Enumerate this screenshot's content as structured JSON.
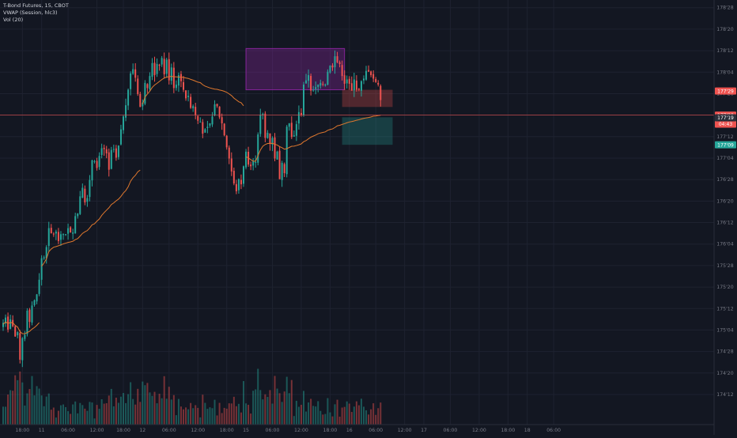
{
  "legend": {
    "symbol": "T-Bond Futures, 15, CBOT",
    "vwap": "VWAP (Session, hlc3)",
    "volume": "Vol (20)"
  },
  "colors": {
    "background": "#131722",
    "grid": "#1e2230",
    "up": "#26a69a",
    "down": "#ef5350",
    "vwap": "#e0782e",
    "axis_text": "#787b86",
    "range_box": "#9c27b0",
    "stop_zone": "#ef5350",
    "target_zone": "#26a69a"
  },
  "chart_data": {
    "type": "candlestick",
    "y_axis": {
      "unit": "price (points'32nds)",
      "ylim": [
        174.2,
        178.9
      ],
      "tick_labels": [
        "178'28",
        "178'20",
        "178'12",
        "178'04",
        "177'28",
        "177'20",
        "177'12",
        "177'04",
        "176'28",
        "176'20",
        "176'12",
        "176'04",
        "175'28",
        "175'20",
        "175'12",
        "175'04",
        "174'28",
        "174'20",
        "174'12"
      ],
      "tick_values": [
        178.875,
        178.625,
        178.375,
        178.125,
        177.875,
        177.625,
        177.375,
        177.125,
        176.875,
        176.625,
        176.375,
        176.125,
        175.875,
        175.625,
        175.375,
        175.125,
        174.875,
        174.625,
        174.375
      ]
    },
    "x_axis": {
      "tick_labels": [
        "18:00",
        "11",
        "06:00",
        "12:00",
        "18:00",
        "12",
        "06:00",
        "12:00",
        "18:00",
        "15",
        "06:00",
        "12:00",
        "18:00",
        "16",
        "06:00",
        "12:00",
        "17",
        "06:00",
        "12:00",
        "18:00",
        "18",
        "06:00"
      ],
      "tick_index": [
        8,
        16,
        27,
        39,
        50,
        58,
        69,
        81,
        93,
        101,
        112,
        124,
        136,
        144,
        155,
        167,
        175,
        186,
        198,
        210,
        218,
        229
      ]
    },
    "series": {
      "ohlc_close": [
        175.21,
        175.27,
        175.13,
        175.25,
        175.17,
        175.05,
        175.1,
        174.78,
        175.03,
        175.07,
        175.35,
        175.22,
        175.41,
        175.47,
        175.54,
        175.71,
        175.96,
        175.97,
        176.09,
        176.31,
        176.25,
        176.24,
        176.27,
        176.16,
        176.24,
        176.24,
        176.24,
        176.31,
        176.26,
        176.26,
        176.45,
        176.48,
        176.68,
        176.78,
        176.61,
        176.66,
        176.87,
        177.1,
        177.09,
        177.01,
        177.15,
        177.24,
        177.23,
        177.18,
        176.99,
        177.22,
        177.23,
        177.13,
        177.27,
        177.46,
        177.61,
        177.74,
        177.92,
        178.11,
        178.16,
        178.06,
        177.87,
        177.72,
        177.77,
        178.0,
        177.94,
        178.08,
        178.23,
        178.09,
        178.22,
        178.2,
        178.29,
        178.1,
        178.27,
        178.03,
        178.18,
        177.94,
        177.98,
        178.09,
        178.02,
        177.92,
        177.82,
        177.85,
        177.71,
        177.73,
        177.63,
        177.56,
        177.55,
        177.41,
        177.46,
        177.49,
        177.53,
        177.61,
        177.75,
        177.73,
        177.6,
        177.53,
        177.39,
        177.25,
        177.12,
        176.97,
        176.83,
        176.74,
        176.88,
        176.82,
        177.03,
        177.2,
        177.05,
        177.03,
        177.09,
        177.08,
        177.4,
        177.63,
        177.64,
        177.36,
        177.42,
        177.29,
        177.36,
        177.12,
        177.2,
        176.88,
        177.07,
        176.95,
        177.49,
        177.53,
        177.37,
        177.39,
        177.52,
        177.66,
        177.63,
        177.98,
        178.03,
        178.09,
        177.91,
        177.92,
        177.95,
        177.98,
        178.0,
        177.98,
        177.98,
        178.13,
        178.2,
        178.18,
        178.31,
        178.24,
        178.22,
        178.08,
        177.99,
        178.04,
        177.99,
        177.91,
        178.04,
        177.92,
        177.92,
        178.02,
        178.05,
        178.14,
        178.13,
        178.09,
        178.05,
        178.01,
        177.98,
        177.8
      ],
      "vwap": "session volume-weighted average price line (orange)",
      "volume_bars": "per-candle volume, colored by candle direction"
    },
    "annotations": {
      "price_labels": [
        {
          "text": "177'29",
          "price": 177.906,
          "color": "#ef5350"
        },
        {
          "text": "177'20",
          "price": 177.625,
          "color": "#ef5350"
        },
        {
          "text": "04:43",
          "price": 177.52,
          "color": "#ef5350"
        },
        {
          "text": "177'19",
          "price": 177.594,
          "color": "#2a2e39"
        },
        {
          "text": "177'09",
          "price": 177.28,
          "color": "#26a69a"
        }
      ],
      "current_price": 177.625,
      "range_box": {
        "from_index": 101,
        "to_index": 142,
        "price_low": 177.92,
        "price_high": 178.4
      },
      "stop_zone": {
        "from_index": 141,
        "to_index": 162,
        "price_low": 177.72,
        "price_high": 177.92
      },
      "target_zone": {
        "from_index": 141,
        "to_index": 162,
        "price_low": 177.28,
        "price_high": 177.6
      }
    },
    "grid": true
  }
}
